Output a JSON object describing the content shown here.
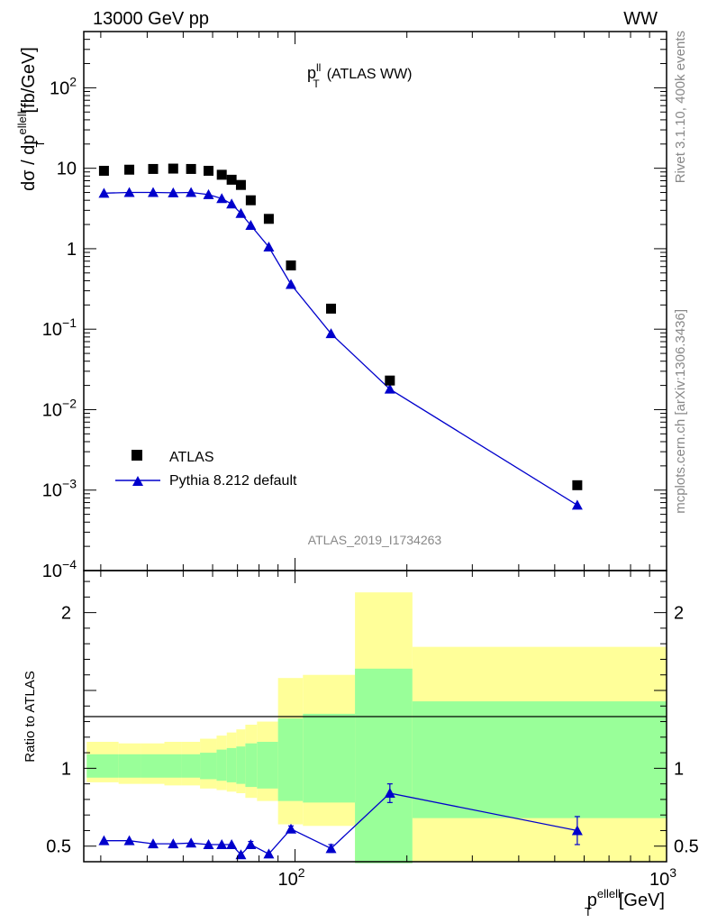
{
  "header": {
    "energy_label": "13000 GeV pp",
    "process_label": "WW"
  },
  "side_labels": {
    "rivet": "Rivet 3.1.10,  400k events",
    "mcplots": "mcplots.cern.ch [arXiv:1306.3436]"
  },
  "colors": {
    "data": "#000000",
    "mc": "#0000cc",
    "band_outer": "#ffff99",
    "band_inner": "#99ff99"
  },
  "chart_data": [
    {
      "type": "scatter",
      "panel": "main",
      "title_main": "p",
      "title_sup": "ll",
      "title_sub": "T",
      "title_suffix": "(ATLAS WW)",
      "ylabel": "dσ / dp",
      "ylabel_sup": "ellell",
      "ylabel_sub": "T",
      "ylabel_unit": "[fb/GeV]",
      "xscale": "log",
      "yscale": "log",
      "xlim": [
        27,
        1000
      ],
      "ylim": [
        0.0001,
        500
      ],
      "yticks": [
        {
          "value": 0.0001,
          "base": "10",
          "exp": "−4"
        },
        {
          "value": 0.001,
          "base": "10",
          "exp": "−3"
        },
        {
          "value": 0.01,
          "base": "10",
          "exp": "−2"
        },
        {
          "value": 0.1,
          "base": "10",
          "exp": "−1"
        },
        {
          "value": 1,
          "base": "1",
          "exp": ""
        },
        {
          "value": 10,
          "base": "10",
          "exp": ""
        },
        {
          "value": 100,
          "base": "10",
          "exp": "2"
        }
      ],
      "watermark": "ATLAS_2019_I1734263",
      "legend": [
        {
          "label": "ATLAS",
          "marker": "square"
        },
        {
          "label": "Pythia 8.212 default",
          "marker": "triangle"
        }
      ],
      "legend_position": "bottom-left",
      "series": [
        {
          "name": "ATLAS",
          "x": [
            30.6,
            35.8,
            41.5,
            47.0,
            52.5,
            58.5,
            63.5,
            67.5,
            71.5,
            76.0,
            85.0,
            97.5,
            125.0,
            180.0,
            575.0
          ],
          "y": [
            9.3,
            9.6,
            9.8,
            9.9,
            9.8,
            9.3,
            8.3,
            7.2,
            6.2,
            4.0,
            2.35,
            0.62,
            0.18,
            0.023,
            0.00115
          ]
        },
        {
          "name": "Pythia 8.212 default",
          "x": [
            30.6,
            35.8,
            41.5,
            47.0,
            52.5,
            58.5,
            63.5,
            67.5,
            71.5,
            76.0,
            85.0,
            97.5,
            125.0,
            180.0,
            575.0
          ],
          "y": [
            4.9,
            5.0,
            5.0,
            4.95,
            5.0,
            4.7,
            4.2,
            3.6,
            2.75,
            1.95,
            1.05,
            0.36,
            0.088,
            0.018,
            0.00065
          ],
          "yerr": [
            0,
            0,
            0,
            0,
            0,
            0,
            0,
            0,
            0,
            0,
            0,
            0,
            0,
            0,
            7e-05
          ]
        }
      ]
    },
    {
      "type": "line",
      "panel": "ratio",
      "ylabel": "Ratio to ATLAS",
      "xlabel_main": "p",
      "xlabel_sup": "ellell",
      "xlabel_sub": "T",
      "xlabel_unit": "[GeV]",
      "xscale": "log",
      "xlim": [
        27,
        1000
      ],
      "ylim": [
        0.4,
        2.27
      ],
      "yticks": [
        0.5,
        1,
        2
      ],
      "ytick_labels": [
        "0.5",
        "1",
        "2"
      ],
      "xticks": [
        {
          "value": 100,
          "base": "10",
          "exp": "2"
        },
        {
          "value": 1000,
          "base": "10",
          "exp": "3"
        }
      ],
      "bands": [
        {
          "x_low": 27.5,
          "x_high": 33.5,
          "inner": [
            0.94,
            1.09
          ],
          "outer": [
            0.91,
            1.17
          ]
        },
        {
          "x_low": 33.5,
          "x_high": 38.5,
          "inner": [
            0.94,
            1.09
          ],
          "outer": [
            0.9,
            1.16
          ]
        },
        {
          "x_low": 38.5,
          "x_high": 44.5,
          "inner": [
            0.94,
            1.09
          ],
          "outer": [
            0.9,
            1.16
          ]
        },
        {
          "x_low": 44.5,
          "x_high": 49.5,
          "inner": [
            0.94,
            1.09
          ],
          "outer": [
            0.89,
            1.17
          ]
        },
        {
          "x_low": 49.5,
          "x_high": 55.5,
          "inner": [
            0.94,
            1.09
          ],
          "outer": [
            0.89,
            1.17
          ]
        },
        {
          "x_low": 55.5,
          "x_high": 61.5,
          "inner": [
            0.93,
            1.1
          ],
          "outer": [
            0.87,
            1.19
          ]
        },
        {
          "x_low": 61.5,
          "x_high": 65.5,
          "inner": [
            0.92,
            1.12
          ],
          "outer": [
            0.86,
            1.21
          ]
        },
        {
          "x_low": 65.5,
          "x_high": 69.5,
          "inner": [
            0.91,
            1.13
          ],
          "outer": [
            0.85,
            1.23
          ]
        },
        {
          "x_low": 69.5,
          "x_high": 73.5,
          "inner": [
            0.9,
            1.14
          ],
          "outer": [
            0.84,
            1.25
          ]
        },
        {
          "x_low": 73.5,
          "x_high": 79.0,
          "inner": [
            0.88,
            1.16
          ],
          "outer": [
            0.81,
            1.28
          ]
        },
        {
          "x_low": 79.0,
          "x_high": 90.0,
          "inner": [
            0.87,
            1.17
          ],
          "outer": [
            0.79,
            1.3
          ]
        },
        {
          "x_low": 90.0,
          "x_high": 105.0,
          "inner": [
            0.79,
            1.32
          ],
          "outer": [
            0.64,
            1.58
          ]
        },
        {
          "x_low": 105.0,
          "x_high": 145.0,
          "inner": [
            0.78,
            1.35
          ],
          "outer": [
            0.63,
            1.6
          ]
        },
        {
          "x_low": 145.0,
          "x_high": 207.0,
          "inner": [
            0.39,
            1.64
          ],
          "outer": [
            0.37,
            2.13
          ]
        },
        {
          "x_low": 207.0,
          "x_high": 1000.0,
          "inner": [
            0.68,
            1.43
          ],
          "outer": [
            0.37,
            1.78
          ]
        }
      ],
      "series": [
        {
          "name": "Pythia 8.212 default",
          "x": [
            30.6,
            35.8,
            41.5,
            47.0,
            52.5,
            58.5,
            63.5,
            67.5,
            71.5,
            76.0,
            85.0,
            97.5,
            125.0,
            180.0,
            575.0
          ],
          "y": [
            0.535,
            0.535,
            0.515,
            0.515,
            0.52,
            0.51,
            0.51,
            0.51,
            0.445,
            0.51,
            0.45,
            0.61,
            0.485,
            0.84,
            0.6
          ],
          "yerr": [
            0,
            0,
            0,
            0,
            0,
            0,
            0,
            0,
            0,
            0.02,
            0,
            0.02,
            0.025,
            0.06,
            0.09
          ]
        }
      ]
    }
  ]
}
